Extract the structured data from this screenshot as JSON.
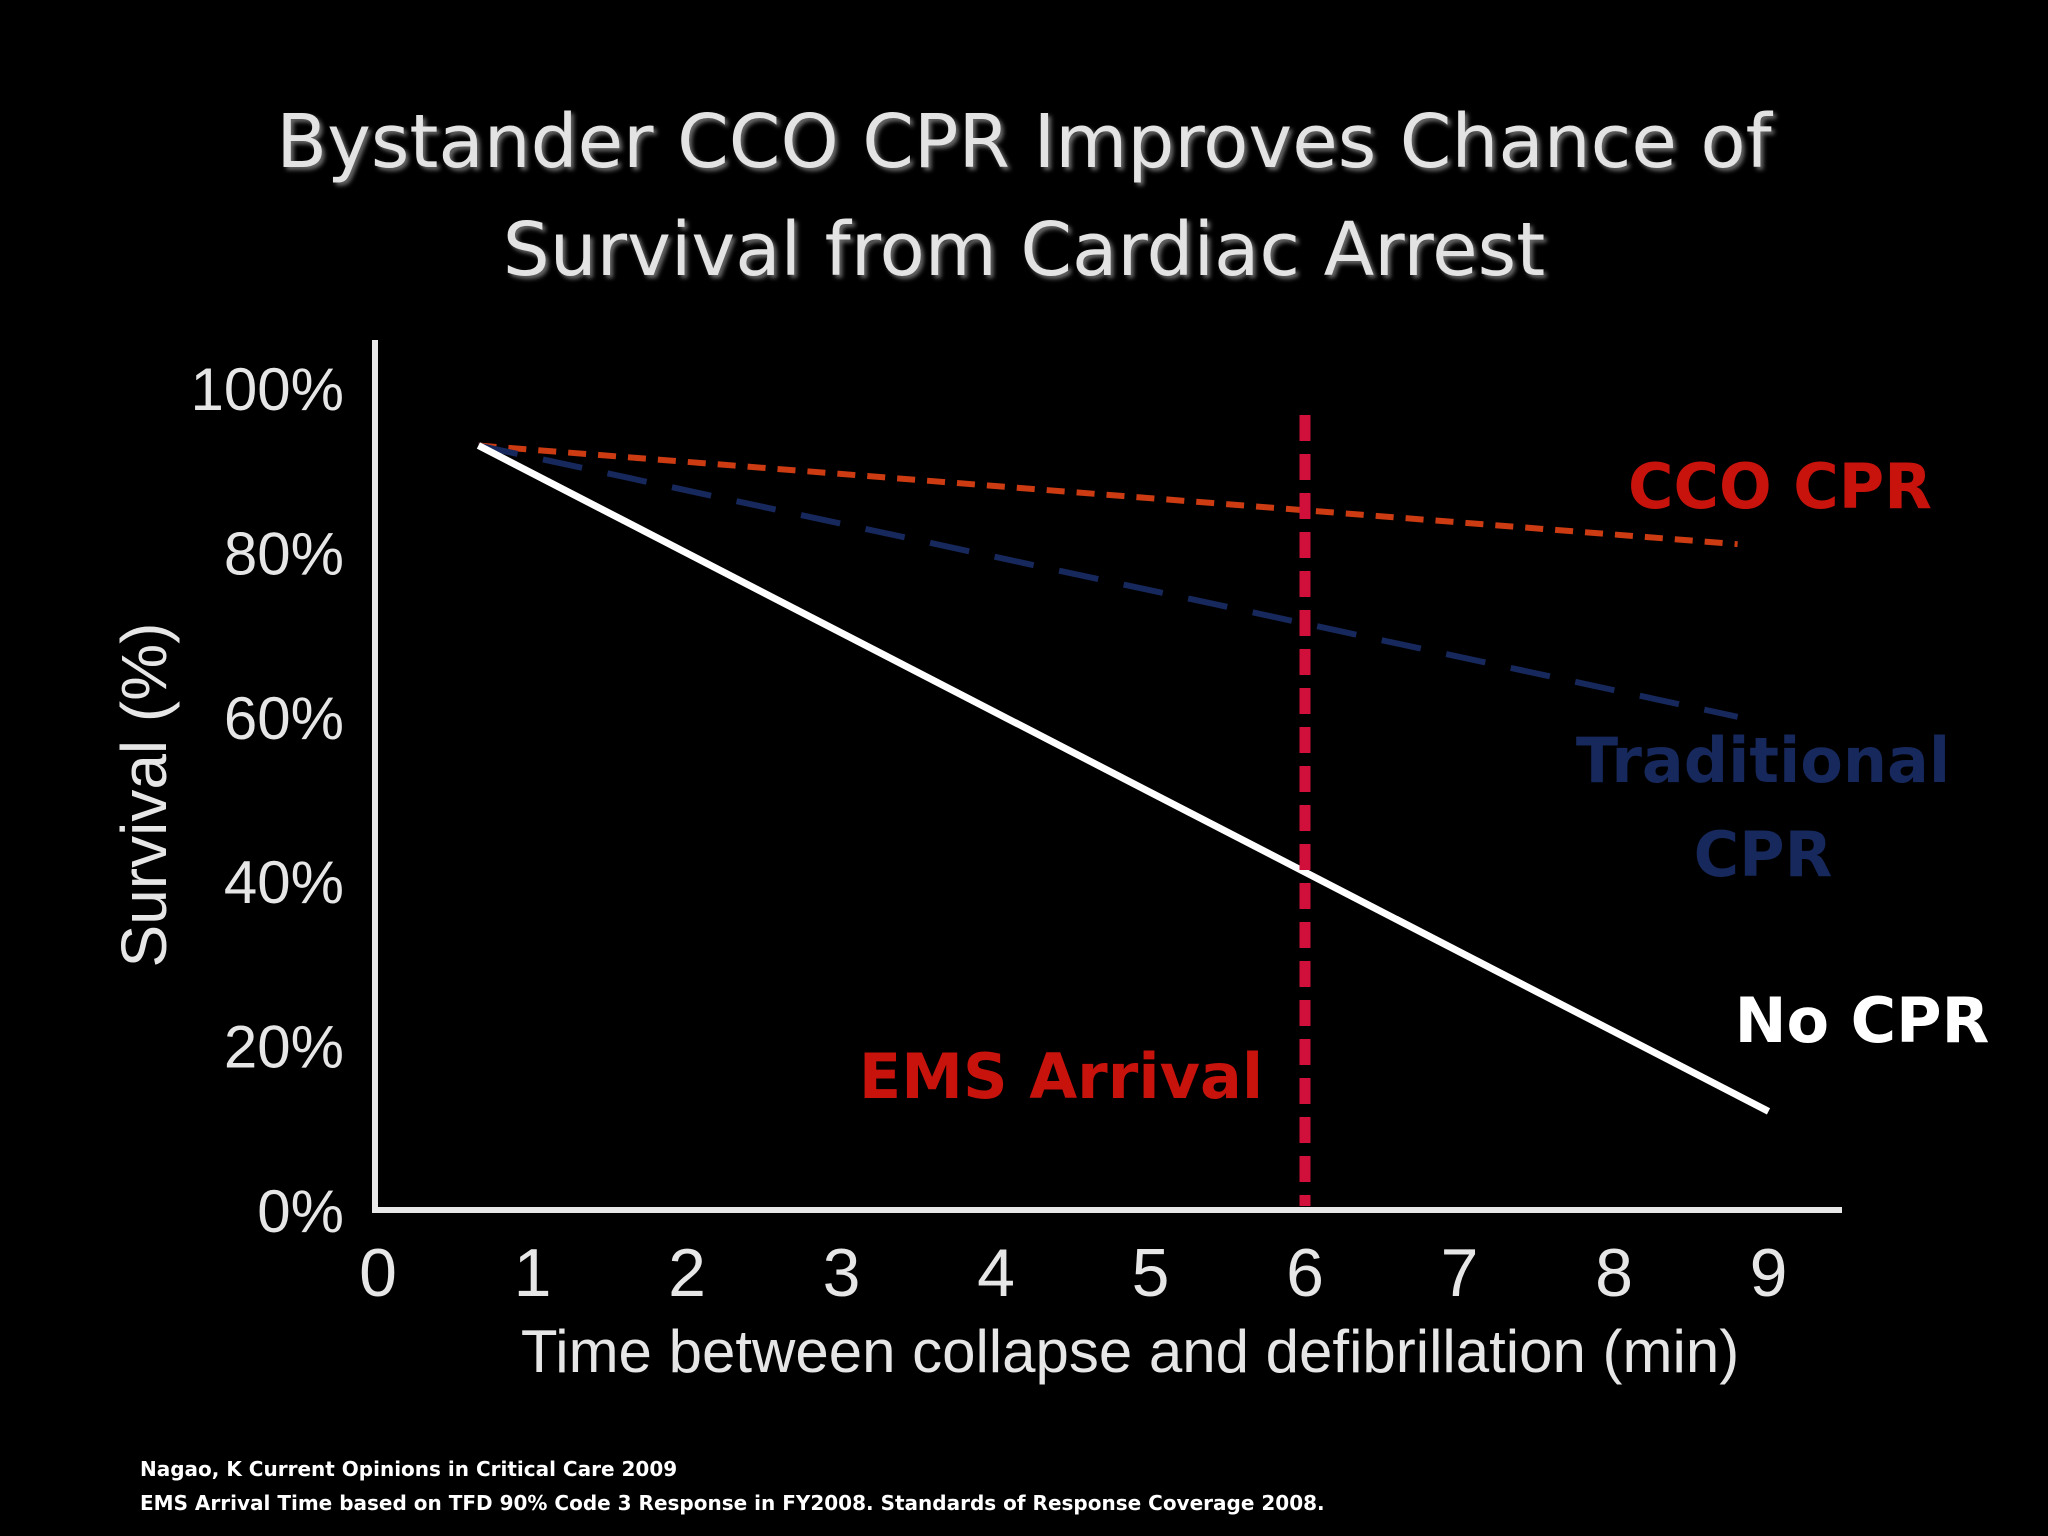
{
  "slide": {
    "title_line1": "Bystander CCO CPR Improves Chance of",
    "title_line2": "Survival from Cardiac Arrest",
    "footnote_line1": "Nagao, K  Current  Opinions in Critical Care  2009",
    "footnote_line2": "EMS Arrival Time based on TFD 90% Code 3 Response in FY2008.  Standards of Response Coverage 2008."
  },
  "chart_data": {
    "type": "line",
    "title": "Bystander CCO CPR Improves Chance of Survival from Cardiac Arrest",
    "xlabel": "Time between collapse and defibrillation (min)",
    "ylabel": "Survival (%)",
    "xlim": [
      0,
      9
    ],
    "ylim": [
      0,
      100
    ],
    "x_ticks": [
      "0",
      "1",
      "2",
      "3",
      "4",
      "5",
      "6",
      "7",
      "8",
      "9"
    ],
    "y_ticks": [
      "0%",
      "20%",
      "40%",
      "60%",
      "80%",
      "100%"
    ],
    "series": [
      {
        "name": "CCO CPR",
        "label_lines": [
          "CCO CPR"
        ],
        "color": "#cc3b12",
        "label_color": "#c8120c",
        "dash": "short",
        "x": [
          0.65,
          8.8
        ],
        "y": [
          93,
          81
        ]
      },
      {
        "name": "Traditional CPR",
        "label_lines": [
          "Traditional",
          "CPR"
        ],
        "color": "#16285c",
        "label_color": "#16285c",
        "dash": "long",
        "x": [
          0.65,
          8.8
        ],
        "y": [
          93,
          60
        ]
      },
      {
        "name": "No CPR",
        "label_lines": [
          "No CPR"
        ],
        "color": "#ffffff",
        "label_color": "#ffffff",
        "dash": "solid",
        "x": [
          0.65,
          9.0
        ],
        "y": [
          93,
          12
        ]
      }
    ],
    "annotations": [
      {
        "text": "EMS Arrival",
        "x": 6,
        "color": "#d0103a",
        "label_color": "#c8120c",
        "style": "vertical dashed line"
      }
    ]
  }
}
